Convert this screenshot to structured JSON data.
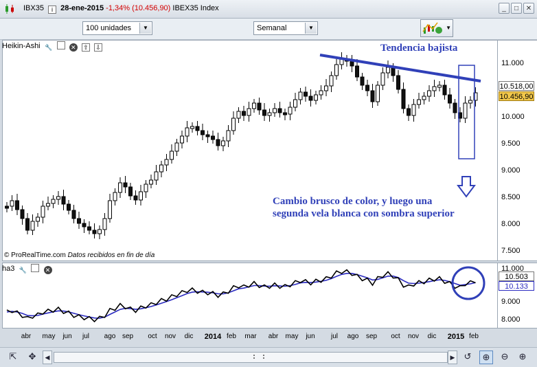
{
  "window": {
    "symbol": "IBX35",
    "info_icon": "i",
    "date": "28-ene-2015",
    "change": "-1,34%",
    "price": "(10.456,90)",
    "index_name": "IBEX35 Index",
    "minimize": "_",
    "maximize": "□",
    "close": "✕"
  },
  "toolbar": {
    "units_value": "100 unidades",
    "period_value": "Semanal"
  },
  "price_panel": {
    "title": "Heikin-Ashi",
    "y_ticks": [
      "11.000",
      "10.000",
      "9.500",
      "9.000",
      "8.500",
      "8.000",
      "7.500"
    ],
    "box_upper": "10.518,00",
    "box_lower": "10.456,90",
    "watermark": "© ProRealTime.com",
    "watermark_note": "Datos recibidos en fin de día",
    "annotation_trend": "Tendencia bajista",
    "annotation_note_line1": "Cambio brusco de color, y luego una",
    "annotation_note_line2": "segunda vela blanca con sombra superior"
  },
  "indicator_panel": {
    "title": "ha3",
    "y_ticks": [
      "11.000",
      "9.000",
      "8.000"
    ],
    "box_upper": "10.503",
    "box_lower": "10.133"
  },
  "x_axis": [
    "abr",
    "may",
    "jun",
    "jul",
    "ago",
    "sep",
    "oct",
    "nov",
    "dic",
    "2014",
    "feb",
    "mar",
    "abr",
    "may",
    "jun",
    "jul",
    "ago",
    "sep",
    "oct",
    "nov",
    "dic",
    "2015",
    "feb"
  ],
  "colors": {
    "annotation": "#3040b8",
    "price_box": "#f2c84b",
    "indicator_fast": "#000000",
    "indicator_slow": "#2a2ac0"
  }
}
